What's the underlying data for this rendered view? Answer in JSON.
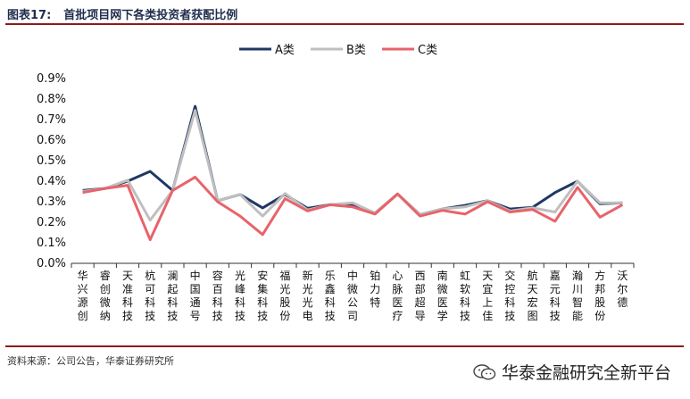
{
  "header": {
    "figure_number": "图表17:",
    "title": "首批项目网下各类投资者获配比例"
  },
  "footer": {
    "source": "资料来源：公司公告，华泰证券研究所",
    "watermark": "华泰金融研究全新平台"
  },
  "chart_data": {
    "type": "line",
    "title": "首批项目网下各类投资者获配比例",
    "legend_position": "top",
    "ylim": [
      0,
      0.9
    ],
    "yticks": [
      "0.0%",
      "0.1%",
      "0.2%",
      "0.3%",
      "0.4%",
      "0.5%",
      "0.6%",
      "0.7%",
      "0.8%",
      "0.9%"
    ],
    "ytick_values": [
      0,
      0.1,
      0.2,
      0.3,
      0.4,
      0.5,
      0.6,
      0.7,
      0.8,
      0.9
    ],
    "categories": [
      "华兴源创",
      "睿创微纳",
      "天准科技",
      "杭可科技",
      "澜起科技",
      "中国通号",
      "容百科技",
      "光峰科技",
      "安集科技",
      "福光股份",
      "新光光电",
      "乐鑫科技",
      "中微公司",
      "铂力特",
      "心脉医疗",
      "西部超导",
      "南微医学",
      "虹软科技",
      "天宜上佳",
      "交控科技",
      "航天宏图",
      "嘉元科技",
      "瀚川智能",
      "方邦股份",
      "沃尔德"
    ],
    "series": [
      {
        "name": "A类",
        "color": "#1f3864",
        "values": [
          0.355,
          0.365,
          0.4,
          0.448,
          0.355,
          0.765,
          0.305,
          0.335,
          0.27,
          0.335,
          0.268,
          0.285,
          0.285,
          0.245,
          0.338,
          0.238,
          0.265,
          0.282,
          0.305,
          0.265,
          0.272,
          0.345,
          0.4,
          0.29,
          0.295
        ]
      },
      {
        "name": "B类",
        "color": "#bfbfbf",
        "values": [
          0.35,
          0.365,
          0.405,
          0.21,
          0.355,
          0.745,
          0.305,
          0.335,
          0.23,
          0.34,
          0.26,
          0.285,
          0.295,
          0.245,
          0.338,
          0.238,
          0.265,
          0.275,
          0.305,
          0.255,
          0.27,
          0.25,
          0.4,
          0.295,
          0.295
        ]
      },
      {
        "name": "C类",
        "color": "#e8636a",
        "values": [
          0.345,
          0.365,
          0.38,
          0.115,
          0.355,
          0.42,
          0.3,
          0.23,
          0.14,
          0.315,
          0.255,
          0.285,
          0.275,
          0.24,
          0.338,
          0.23,
          0.258,
          0.24,
          0.3,
          0.25,
          0.262,
          0.205,
          0.37,
          0.225,
          0.285
        ]
      }
    ]
  }
}
